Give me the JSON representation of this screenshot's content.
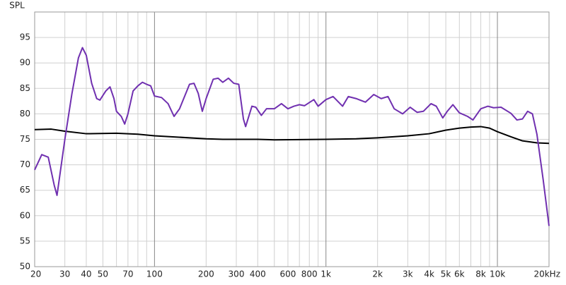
{
  "chart_data": {
    "type": "line",
    "y_label": "SPL",
    "xscale": "log",
    "xlim": [
      20,
      20000
    ],
    "ylim": [
      50,
      100
    ],
    "yticks": [
      50,
      55,
      60,
      65,
      70,
      75,
      80,
      85,
      90,
      95
    ],
    "xticks": [
      20,
      30,
      40,
      50,
      70,
      100,
      200,
      300,
      400,
      600,
      800,
      {
        "value": 1000,
        "label": "1k"
      },
      {
        "value": 2000,
        "label": "2k"
      },
      {
        "value": 3000,
        "label": "3k"
      },
      {
        "value": 4000,
        "label": "4k"
      },
      {
        "value": 5000,
        "label": "5k"
      },
      {
        "value": 6000,
        "label": "6k"
      },
      {
        "value": 8000,
        "label": "8k"
      },
      {
        "value": 10000,
        "label": "10k"
      },
      {
        "value": 20000,
        "label": "20kHz"
      }
    ],
    "xminor": [
      60,
      80,
      90,
      500,
      700,
      900,
      7000,
      9000
    ],
    "grid": true,
    "series": [
      {
        "color": "#7030b0",
        "x": [
          20,
          22,
          24,
          26,
          27,
          30,
          33,
          36,
          38,
          40,
          43,
          46,
          48,
          52,
          55,
          58,
          60,
          64,
          67,
          70,
          75,
          80,
          85,
          90,
          95,
          100,
          110,
          120,
          130,
          140,
          160,
          170,
          180,
          190,
          200,
          220,
          235,
          250,
          270,
          290,
          310,
          330,
          340,
          370,
          390,
          420,
          450,
          500,
          550,
          600,
          650,
          700,
          750,
          850,
          900,
          1000,
          1100,
          1250,
          1350,
          1500,
          1700,
          1900,
          2100,
          2300,
          2500,
          2800,
          3100,
          3400,
          3700,
          4100,
          4400,
          4800,
          5100,
          5500,
          6000,
          6700,
          7200,
          8000,
          8800,
          9500,
          10500,
          12000,
          13000,
          14000,
          15000,
          16000,
          17000,
          18500,
          20000
        ],
        "values": [
          69,
          72,
          71.5,
          66,
          64,
          75,
          84,
          91,
          93,
          91.5,
          86,
          83,
          82.7,
          84.5,
          85.3,
          83,
          80.5,
          79.5,
          78,
          80,
          84.5,
          85.5,
          86.2,
          85.8,
          85.5,
          83.5,
          83.2,
          82,
          79.5,
          81,
          85.8,
          86,
          84,
          80.5,
          83,
          86.8,
          87,
          86.2,
          87,
          86,
          85.8,
          79,
          77.5,
          81.5,
          81.3,
          79.7,
          81,
          81,
          82,
          81,
          81.5,
          81.8,
          81.6,
          82.8,
          81.5,
          82.8,
          83.4,
          81.5,
          83.4,
          83,
          82.3,
          83.8,
          83,
          83.4,
          81,
          80,
          81.3,
          80.3,
          80.5,
          82,
          81.5,
          79.2,
          80.5,
          81.8,
          80.2,
          79.5,
          78.8,
          81,
          81.5,
          81.2,
          81.3,
          80.1,
          78.8,
          79,
          80.5,
          80,
          76,
          67,
          58
        ]
      },
      {
        "color": "#000000",
        "x": [
          20,
          25,
          30,
          40,
          60,
          80,
          100,
          200,
          250,
          400,
          500,
          1000,
          1500,
          2000,
          3000,
          4000,
          5000,
          6000,
          7000,
          8000,
          9000,
          10000,
          12000,
          14000,
          17000,
          20000
        ],
        "values": [
          76.9,
          77,
          76.6,
          76.1,
          76.2,
          76,
          75.7,
          75.1,
          75,
          75,
          74.9,
          75,
          75.1,
          75.3,
          75.7,
          76.1,
          76.8,
          77.2,
          77.4,
          77.5,
          77.2,
          76.5,
          75.5,
          74.7,
          74.3,
          74.2
        ]
      }
    ]
  }
}
